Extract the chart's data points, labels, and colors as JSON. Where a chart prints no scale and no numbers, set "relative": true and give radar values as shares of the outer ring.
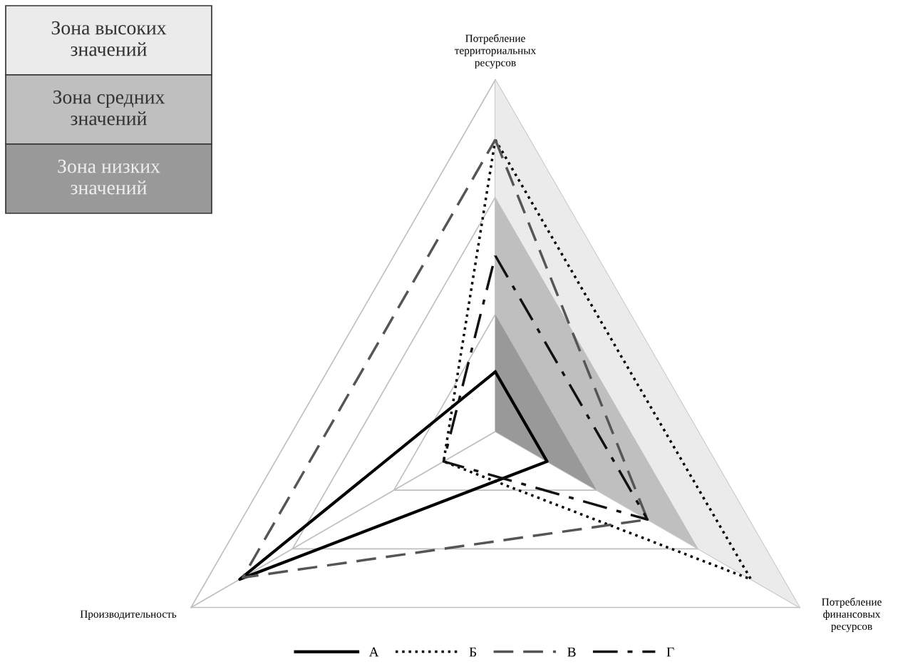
{
  "chart_data": {
    "type": "radar",
    "relative": true,
    "categories": [
      "Потребление территориальных ресурсов",
      "Потребление финансовых ресурсов",
      "Производительность"
    ],
    "series": [
      {
        "name": "Зона высоких значений",
        "type": "area",
        "color": "#ebebeb",
        "values": [
          1,
          1,
          0
        ]
      },
      {
        "name": "Зона средних значений",
        "type": "area",
        "color": "#bfbfbf",
        "values": [
          0.667,
          0.667,
          0
        ]
      },
      {
        "name": "Зона низких значений",
        "type": "area",
        "color": "#999999",
        "values": [
          0.333,
          0.333,
          0
        ]
      },
      {
        "name": "А",
        "color": "#000000",
        "line_style": "solid",
        "values": [
          0.17,
          0.17,
          0.84
        ]
      },
      {
        "name": "Б",
        "color": "#000000",
        "line_style": "dotted",
        "values": [
          0.83,
          0.84,
          0.17
        ]
      },
      {
        "name": "В",
        "color": "#555555",
        "line_style": "dashed",
        "values": [
          0.83,
          0.5,
          0.83
        ]
      },
      {
        "name": "Г",
        "color": "#111111",
        "line_style": "dashdot",
        "values": [
          0.5,
          0.5,
          0.17
        ]
      }
    ],
    "grid": true,
    "legend": "bottom",
    "marker": "none"
  }
}
